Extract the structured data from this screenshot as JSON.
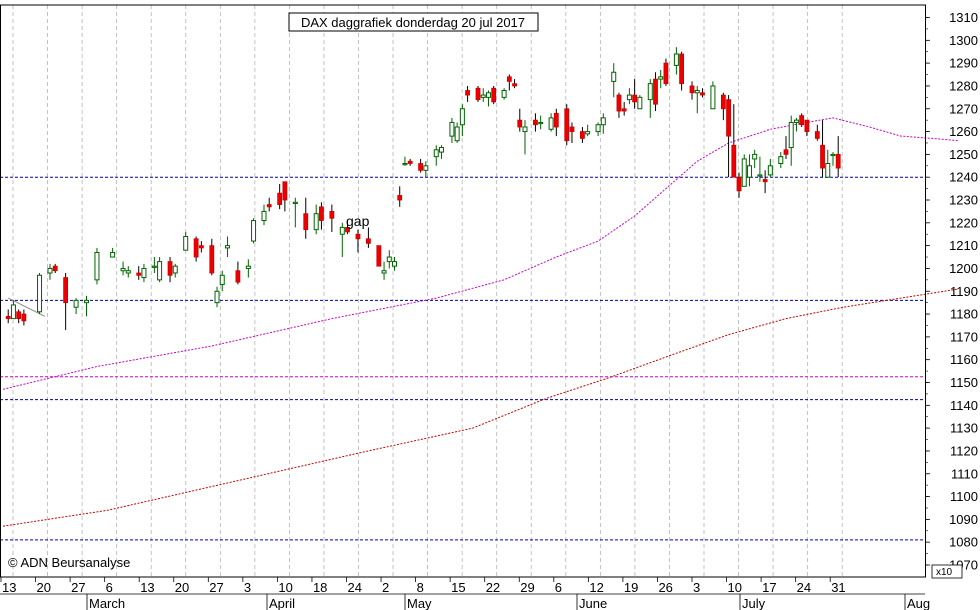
{
  "chart_data": {
    "type": "candlestick",
    "title": "DAX daggrafiek donderdag 20 jul 2017",
    "copyright": "© ADN Beursanalyse",
    "annotation": "gap",
    "y_unit_label": "x10",
    "ylim": [
      1070,
      1315
    ],
    "y_ticks": [
      1070,
      1080,
      1090,
      1100,
      1110,
      1120,
      1130,
      1140,
      1150,
      1160,
      1170,
      1180,
      1190,
      1200,
      1210,
      1220,
      1230,
      1240,
      1250,
      1260,
      1270,
      1280,
      1290,
      1300,
      1310
    ],
    "x_day_ticks": [
      "13",
      "20",
      "27",
      "6",
      "13",
      "20",
      "27",
      "3",
      "10",
      "18",
      "24",
      "2",
      "8",
      "15",
      "22",
      "29",
      "6",
      "12",
      "19",
      "26",
      "3",
      "10",
      "17",
      "24",
      "31"
    ],
    "x_month_labels": [
      "March",
      "April",
      "May",
      "June",
      "July",
      "Aug"
    ],
    "horizontal_levels": [
      {
        "value": 1240,
        "color": "#0000aa"
      },
      {
        "value": 1186,
        "color": "#0000aa"
      },
      {
        "value": 1152.5,
        "color": "#cc00cc"
      },
      {
        "value": 1142.5,
        "color": "#0000aa"
      },
      {
        "value": 1081,
        "color": "#0000aa"
      }
    ],
    "trend_line": {
      "from": [
        1,
        1187
      ],
      "to": [
        8,
        1179
      ],
      "color": "#888888"
    },
    "ma_short": {
      "color": "#cc00cc",
      "start": 1147,
      "points": [
        [
          18,
          1157
        ],
        [
          40,
          1166
        ],
        [
          63,
          1178
        ],
        [
          83,
          1187
        ],
        [
          96,
          1195
        ],
        [
          106,
          1205
        ],
        [
          114,
          1212
        ],
        [
          121,
          1223
        ],
        [
          127,
          1235
        ],
        [
          133,
          1247
        ],
        [
          139,
          1255
        ],
        [
          147,
          1261
        ],
        [
          154,
          1264
        ],
        [
          159,
          1266
        ],
        [
          166,
          1262
        ],
        [
          172,
          1258
        ],
        [
          178,
          1257
        ],
        [
          183,
          1256
        ]
      ]
    },
    "ma_long": {
      "color": "#cc0000",
      "start": 1087,
      "points": [
        [
          20,
          1094
        ],
        [
          45,
          1107
        ],
        [
          68,
          1119
        ],
        [
          90,
          1130
        ],
        [
          104,
          1143
        ],
        [
          116,
          1152
        ],
        [
          128,
          1162
        ],
        [
          139,
          1171
        ],
        [
          150,
          1178
        ],
        [
          161,
          1183
        ],
        [
          172,
          1187
        ],
        [
          183,
          1191
        ]
      ]
    },
    "candles": [
      [
        1,
        1179,
        1182,
        1176,
        1178
      ],
      [
        2,
        1178,
        1186,
        1178,
        1184
      ],
      [
        3,
        1181,
        1182,
        1176,
        1178
      ],
      [
        4,
        1180,
        1182,
        1175,
        1177
      ],
      [
        7,
        1181,
        1198,
        1180,
        1197
      ],
      [
        9,
        1198,
        1202,
        1195,
        1200
      ],
      [
        10,
        1201,
        1202,
        1198,
        1199
      ],
      [
        12,
        1196,
        1198,
        1173,
        1185
      ],
      [
        14,
        1183,
        1187,
        1180,
        1186
      ],
      [
        16,
        1185,
        1188,
        1179,
        1186
      ],
      [
        18,
        1195,
        1209,
        1193,
        1207
      ],
      [
        21,
        1205,
        1209,
        1205,
        1207
      ],
      [
        23,
        1199,
        1203,
        1197,
        1200
      ],
      [
        24,
        1198,
        1201,
        1196,
        1199
      ],
      [
        26,
        1198,
        1201,
        1195,
        1197
      ],
      [
        27,
        1196,
        1202,
        1194,
        1200
      ],
      [
        29,
        1201,
        1205,
        1198,
        1201
      ],
      [
        30,
        1195,
        1205,
        1194,
        1203
      ],
      [
        32,
        1203,
        1205,
        1194,
        1197
      ],
      [
        33,
        1198,
        1202,
        1196,
        1201
      ],
      [
        35,
        1208,
        1216,
        1208,
        1214
      ],
      [
        37,
        1213,
        1214,
        1203,
        1205
      ],
      [
        38,
        1210,
        1212,
        1207,
        1209
      ],
      [
        40,
        1210,
        1213,
        1197,
        1198
      ],
      [
        41,
        1185,
        1192,
        1183,
        1190
      ],
      [
        42,
        1193,
        1199,
        1190,
        1197
      ],
      [
        43,
        1209,
        1214,
        1205,
        1210
      ],
      [
        45,
        1199,
        1203,
        1193,
        1194
      ],
      [
        47,
        1200,
        1204,
        1196,
        1201
      ],
      [
        48,
        1212,
        1222,
        1211,
        1221
      ],
      [
        50,
        1221,
        1228,
        1219,
        1225
      ],
      [
        51,
        1228,
        1231,
        1225,
        1227
      ],
      [
        53,
        1233,
        1237,
        1226,
        1228
      ],
      [
        54,
        1238,
        1238,
        1225,
        1230
      ],
      [
        56,
        1229,
        1231,
        1218,
        1229
      ],
      [
        58,
        1224,
        1231,
        1213,
        1217
      ],
      [
        60,
        1217,
        1228,
        1215,
        1224
      ],
      [
        61,
        1227,
        1229,
        1217,
        1221
      ],
      [
        63,
        1225,
        1228,
        1216,
        1222
      ],
      [
        65,
        1215,
        1220,
        1205,
        1218
      ],
      [
        66,
        1218,
        1221,
        1215,
        1216
      ],
      [
        68,
        1215,
        1217,
        1207,
        1213
      ],
      [
        70,
        1213,
        1218,
        1209,
        1211
      ],
      [
        72,
        1210,
        1209,
        1201,
        1201
      ],
      [
        73,
        1198,
        1203,
        1195,
        1199
      ],
      [
        74,
        1203,
        1208,
        1200,
        1205
      ],
      [
        75,
        1201,
        1205,
        1199,
        1203
      ],
      [
        76,
        1232,
        1236,
        1227,
        1230
      ],
      [
        77,
        1246,
        1249,
        1245,
        1246
      ],
      [
        78,
        1247,
        1248,
        1245,
        1246
      ],
      [
        80,
        1246,
        1248,
        1242,
        1243
      ],
      [
        81,
        1243,
        1247,
        1240,
        1245
      ],
      [
        83,
        1249,
        1254,
        1245,
        1252
      ],
      [
        84,
        1251,
        1254,
        1248,
        1253
      ],
      [
        86,
        1258,
        1266,
        1255,
        1264
      ],
      [
        87,
        1256,
        1264,
        1255,
        1262
      ],
      [
        88,
        1263,
        1272,
        1258,
        1270
      ],
      [
        89,
        1278,
        1280,
        1273,
        1276
      ],
      [
        91,
        1279,
        1280,
        1273,
        1274
      ],
      [
        92,
        1275,
        1279,
        1273,
        1276
      ],
      [
        93,
        1275,
        1278,
        1271,
        1277
      ],
      [
        94,
        1279,
        1280,
        1272,
        1273
      ],
      [
        96,
        1275,
        1279,
        1274,
        1278
      ],
      [
        97,
        1284,
        1285,
        1278,
        1282
      ],
      [
        98,
        1281,
        1283,
        1279,
        1280
      ],
      [
        99,
        1265,
        1270,
        1260,
        1262
      ],
      [
        100,
        1260,
        1265,
        1250,
        1262
      ],
      [
        102,
        1265,
        1268,
        1260,
        1263
      ],
      [
        103,
        1264,
        1267,
        1261,
        1264
      ],
      [
        105,
        1261,
        1268,
        1260,
        1266
      ],
      [
        106,
        1268,
        1270,
        1258,
        1262
      ],
      [
        108,
        1270,
        1272,
        1254,
        1256
      ],
      [
        109,
        1262,
        1264,
        1255,
        1260
      ],
      [
        111,
        1260,
        1262,
        1255,
        1257
      ],
      [
        112,
        1259,
        1263,
        1258,
        1260
      ],
      [
        114,
        1260,
        1264,
        1258,
        1263
      ],
      [
        115,
        1263,
        1268,
        1259,
        1266
      ],
      [
        117,
        1282,
        1290,
        1275,
        1286
      ],
      [
        118,
        1276,
        1277,
        1266,
        1269
      ],
      [
        119,
        1270,
        1273,
        1267,
        1269
      ],
      [
        120,
        1274,
        1279,
        1272,
        1276
      ],
      [
        121,
        1276,
        1283,
        1270,
        1273
      ],
      [
        122,
        1270,
        1276,
        1270,
        1275
      ],
      [
        124,
        1274,
        1283,
        1266,
        1281
      ],
      [
        125,
        1283,
        1286,
        1269,
        1272
      ],
      [
        126,
        1283,
        1287,
        1279,
        1284
      ],
      [
        127,
        1290,
        1292,
        1280,
        1281
      ],
      [
        129,
        1289,
        1297,
        1285,
        1294
      ],
      [
        130,
        1294,
        1295,
        1278,
        1281
      ],
      [
        132,
        1280,
        1282,
        1274,
        1277
      ],
      [
        133,
        1277,
        1280,
        1268,
        1278
      ],
      [
        134,
        1277,
        1279,
        1275,
        1276
      ],
      [
        136,
        1270,
        1282,
        1270,
        1280
      ],
      [
        138,
        1276,
        1277,
        1265,
        1270
      ],
      [
        139,
        1274,
        1276,
        1240,
        1258
      ],
      [
        140,
        1254,
        1272,
        1240,
        1240
      ],
      [
        141,
        1240,
        1242,
        1231,
        1234
      ],
      [
        142,
        1236,
        1250,
        1236,
        1248
      ],
      [
        143,
        1240,
        1250,
        1236,
        1245
      ],
      [
        144,
        1248,
        1252,
        1244,
        1250
      ],
      [
        145,
        1241,
        1249,
        1238,
        1241
      ],
      [
        146,
        1239,
        1243,
        1233,
        1238
      ],
      [
        147,
        1241,
        1248,
        1240,
        1245
      ],
      [
        149,
        1246,
        1251,
        1244,
        1249
      ],
      [
        150,
        1252,
        1258,
        1248,
        1250
      ],
      [
        151,
        1253,
        1267,
        1245,
        1264
      ],
      [
        152,
        1264,
        1266,
        1260,
        1265
      ],
      [
        153,
        1267,
        1268,
        1262,
        1263
      ],
      [
        154,
        1265,
        1264,
        1258,
        1260
      ],
      [
        156,
        1260,
        1263,
        1256,
        1257
      ],
      [
        157,
        1254,
        1265,
        1240,
        1244
      ],
      [
        158,
        1240,
        1252,
        1240,
        1246
      ],
      [
        159,
        1250,
        1251,
        1245,
        1250
      ],
      [
        160,
        1250,
        1258,
        1240,
        1244
      ]
    ]
  }
}
